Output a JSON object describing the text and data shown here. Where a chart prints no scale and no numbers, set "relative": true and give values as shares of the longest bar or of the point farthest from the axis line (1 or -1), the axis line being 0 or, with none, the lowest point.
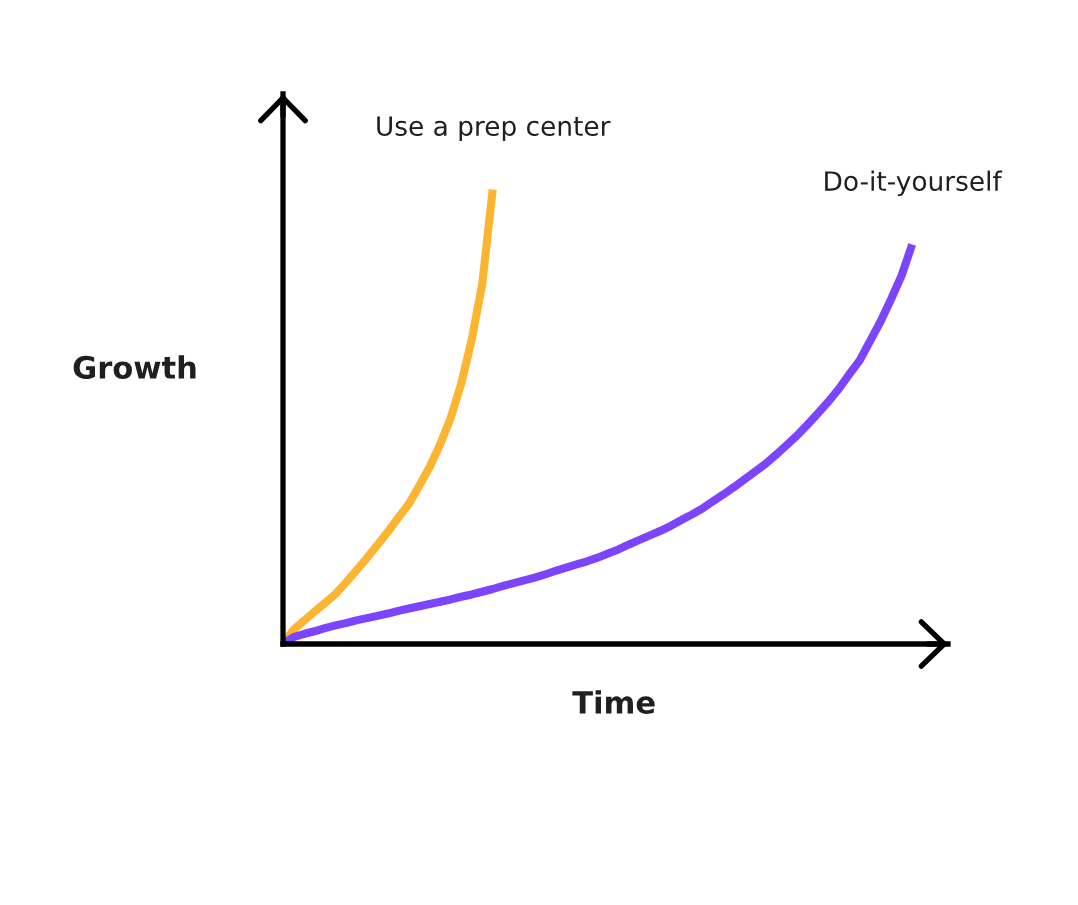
{
  "chart_data": {
    "type": "line",
    "xlabel": "Time",
    "ylabel": "Growth",
    "relative": true,
    "categories": [
      null,
      null,
      null,
      null,
      null,
      null,
      null,
      null,
      null,
      null,
      null,
      null,
      null,
      null,
      null,
      null,
      null,
      null,
      null,
      null,
      null,
      null,
      null,
      null,
      null,
      null,
      null,
      null,
      null,
      null,
      null,
      null,
      null,
      null,
      null,
      null,
      null,
      null,
      null,
      null,
      null,
      null,
      null,
      null,
      null,
      null,
      null,
      null,
      null,
      null,
      null,
      null,
      null,
      null,
      null,
      null,
      null,
      null,
      null,
      null,
      null
    ],
    "series": [
      {
        "name": "Use a prep center",
        "color": "#fbb530",
        "values": [
          0,
          0.031,
          0.051,
          0.071,
          0.09,
          0.11,
          0.135,
          0.162,
          0.189,
          0.218,
          0.247,
          0.278,
          0.308,
          0.348,
          0.39,
          0.44,
          0.498,
          0.573,
          0.67,
          0.792,
          1,
          null,
          null,
          null,
          null,
          null,
          null,
          null,
          null,
          null,
          null,
          null,
          null,
          null,
          null,
          null,
          null,
          null,
          null,
          null,
          null,
          null,
          null,
          null,
          null,
          null,
          null,
          null,
          null,
          null,
          null,
          null,
          null,
          null,
          null,
          null,
          null,
          null,
          null,
          null,
          null
        ]
      },
      {
        "name": "Do-it-yourself",
        "color": "#7c45fb",
        "values": [
          0,
          0.015,
          0.022,
          0.028,
          0.035,
          0.041,
          0.046,
          0.052,
          0.057,
          0.062,
          0.067,
          0.073,
          0.078,
          0.083,
          0.088,
          0.093,
          0.098,
          0.104,
          0.109,
          0.115,
          0.121,
          0.128,
          0.134,
          0.14,
          0.146,
          0.153,
          0.161,
          0.168,
          0.175,
          0.182,
          0.19,
          0.199,
          0.208,
          0.219,
          0.229,
          0.239,
          0.249,
          0.26,
          0.273,
          0.285,
          0.298,
          0.314,
          0.329,
          0.345,
          0.362,
          0.379,
          0.396,
          0.416,
          0.437,
          0.458,
          0.482,
          0.507,
          0.533,
          0.561,
          0.593,
          0.624,
          0.667,
          0.71,
          0.759,
          0.811,
          0.879
        ]
      }
    ]
  }
}
